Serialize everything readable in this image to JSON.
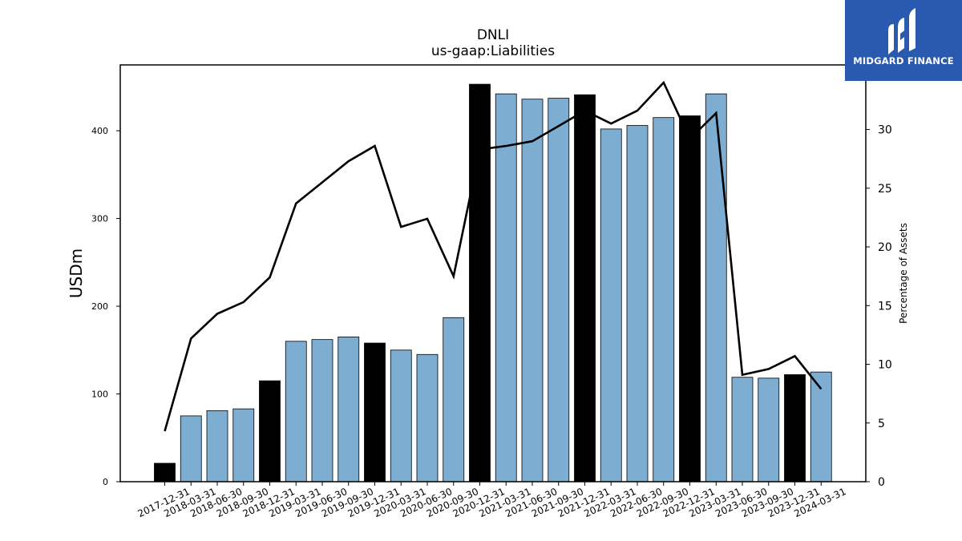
{
  "chart_data": {
    "type": "bar",
    "title": "DNLI",
    "subtitle": "us-gaap:Liabilities",
    "ylabel": "USDm",
    "y2label": "Percentage of Assets",
    "ylim": [
      0,
      475
    ],
    "y2lim": [
      0,
      35.5
    ],
    "yticks": [
      0,
      100,
      200,
      300,
      400
    ],
    "y2ticks": [
      0,
      5,
      10,
      15,
      20,
      25,
      30
    ],
    "categories": [
      "2017-12-31",
      "2018-03-31",
      "2018-06-30",
      "2018-09-30",
      "2018-12-31",
      "2019-03-31",
      "2019-06-30",
      "2019-09-30",
      "2019-12-31",
      "2020-03-31",
      "2020-06-30",
      "2020-09-30",
      "2020-12-31",
      "2021-03-31",
      "2021-06-30",
      "2021-09-30",
      "2021-12-31",
      "2022-03-31",
      "2022-06-30",
      "2022-09-30",
      "2022-12-31",
      "2023-03-31",
      "2023-06-30",
      "2023-09-30",
      "2023-12-31",
      "2024-03-31"
    ],
    "series": [
      {
        "kind": "bar",
        "axis": "left",
        "values": [
          21,
          75,
          81,
          83,
          115,
          160,
          162,
          165,
          158,
          150,
          145,
          187,
          453,
          442,
          436,
          437,
          441,
          402,
          406,
          415,
          417,
          442,
          119,
          118,
          122,
          125
        ],
        "colors": [
          "#000000",
          "#7eadd2",
          "#7eadd2",
          "#7eadd2",
          "#000000",
          "#7eadd2",
          "#7eadd2",
          "#7eadd2",
          "#000000",
          "#7eadd2",
          "#7eadd2",
          "#7eadd2",
          "#000000",
          "#7eadd2",
          "#7eadd2",
          "#7eadd2",
          "#000000",
          "#7eadd2",
          "#7eadd2",
          "#7eadd2",
          "#000000",
          "#7eadd2",
          "#7eadd2",
          "#7eadd2",
          "#000000",
          "#7eadd2"
        ]
      },
      {
        "kind": "line",
        "axis": "right",
        "color": "#000000",
        "values": [
          4.3,
          12.2,
          14.3,
          15.3,
          17.4,
          23.7,
          25.5,
          27.3,
          28.6,
          21.7,
          22.4,
          17.5,
          28.3,
          28.6,
          29.0,
          30.3,
          31.6,
          30.5,
          31.6,
          34.0,
          29.2,
          31.4,
          9.1,
          9.6,
          10.7,
          7.9
        ]
      }
    ],
    "grid": false,
    "legend": "none"
  },
  "logo": {
    "text": "MIDGARD FINANCE"
  },
  "colors": {
    "highlight": "#000000",
    "bar": "#7eadd2",
    "logo_bg": "#2a5ab0"
  }
}
